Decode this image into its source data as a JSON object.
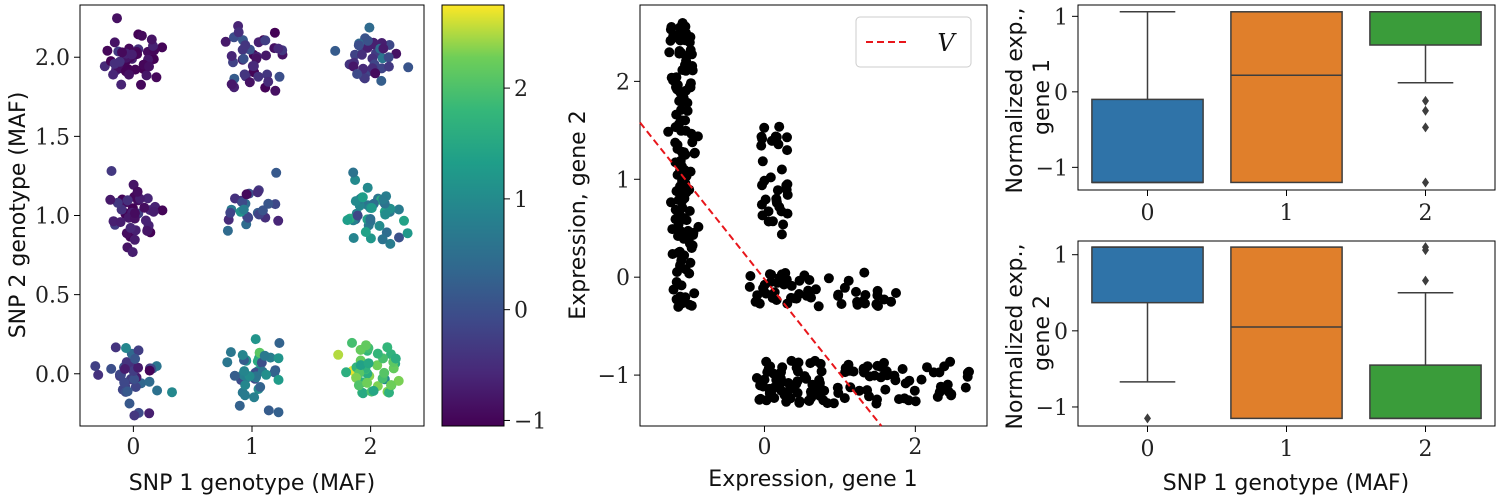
{
  "chart_data": [
    {
      "panel": "genotype-scatter",
      "type": "scatter",
      "xlabel": "SNP 1 genotype (MAF)",
      "ylabel": "SNP 2 genotype (MAF)",
      "xlim": [
        -0.45,
        2.45
      ],
      "ylim": [
        -0.33,
        2.33
      ],
      "xticks": [
        0,
        1,
        2
      ],
      "xtick_labels": [
        "0",
        "1",
        "2"
      ],
      "yticks": [
        0.0,
        0.5,
        1.0,
        1.5,
        2.0
      ],
      "ytick_labels": [
        "0.0",
        "0.5",
        "1.0",
        "1.5",
        "2.0"
      ],
      "colormap": "viridis",
      "color_range": [
        -1.05,
        2.75
      ],
      "colorbar_ticks": [
        -1,
        0,
        1,
        2
      ],
      "colorbar_tick_labels": [
        "−1",
        "0",
        "1",
        "2"
      ],
      "clusters": [
        {
          "x": 0,
          "y": 2,
          "mean_color": -0.9,
          "spread": 0.35,
          "n": 45
        },
        {
          "x": 1,
          "y": 2,
          "mean_color": -0.6,
          "spread": 0.6,
          "n": 40
        },
        {
          "x": 2,
          "y": 2,
          "mean_color": -0.3,
          "spread": 0.8,
          "n": 40
        },
        {
          "x": 0,
          "y": 1,
          "mean_color": -0.8,
          "spread": 0.4,
          "n": 42
        },
        {
          "x": 1,
          "y": 1,
          "mean_color": 0.0,
          "spread": 0.7,
          "n": 25
        },
        {
          "x": 2,
          "y": 1,
          "mean_color": 0.9,
          "spread": 0.8,
          "n": 42
        },
        {
          "x": 0,
          "y": 0,
          "mean_color": -0.1,
          "spread": 0.8,
          "n": 40
        },
        {
          "x": 1,
          "y": 0,
          "mean_color": 0.8,
          "spread": 0.7,
          "n": 42
        },
        {
          "x": 2,
          "y": 0,
          "mean_color": 2.0,
          "spread": 0.6,
          "n": 45
        }
      ]
    },
    {
      "panel": "expression-scatter",
      "type": "scatter",
      "xlabel": "Expression, gene 1",
      "ylabel": "Expression, gene 2",
      "xlim": [
        -1.65,
        2.95
      ],
      "ylim": [
        -1.52,
        2.78
      ],
      "xticks": [
        0,
        2
      ],
      "xtick_labels": [
        "0",
        "2"
      ],
      "yticks": [
        -1,
        0,
        1,
        2
      ],
      "ytick_labels": [
        "−1",
        "0",
        "1",
        "2"
      ],
      "legend": {
        "position": "top-right",
        "entries": [
          {
            "label": "V",
            "style": "dashed",
            "color": "#e8161b"
          }
        ]
      },
      "line_V": {
        "x": [
          -1.65,
          1.55
        ],
        "y": [
          1.58,
          -1.52
        ]
      },
      "point_groups": [
        {
          "x_center": -1.1,
          "x_spread": 0.28,
          "y_min": -0.35,
          "y_max": 2.62,
          "n": 150
        },
        {
          "x_center": 0.05,
          "x_spread": 0.3,
          "y_min": 0.4,
          "y_max": 1.9,
          "n": 35
        },
        {
          "x_center": 0.6,
          "x_spread": 1.1,
          "y_min": -0.3,
          "y_max": 0.05,
          "n": 55
        },
        {
          "x_center": 1.0,
          "x_spread": 1.6,
          "y_min": -1.3,
          "y_max": -0.85,
          "n": 120
        }
      ]
    },
    {
      "panel": "boxplot-gene1",
      "type": "box",
      "ylabel": "Normalized exp., gene 1",
      "categories": [
        "0",
        "1",
        "2"
      ],
      "ylim": [
        -1.3,
        1.15
      ],
      "yticks": [
        -1,
        0,
        1
      ],
      "ytick_labels": [
        "−1",
        "0",
        "1"
      ],
      "xtick_labels": [
        "0",
        "1",
        "2"
      ],
      "colors": [
        "#2f73a8",
        "#e07f2b",
        "#3a9c3a"
      ],
      "boxes": [
        {
          "whisker_low": -1.2,
          "q1": -1.2,
          "median": -1.2,
          "q3": -0.1,
          "whisker_high": 1.06,
          "outliers": []
        },
        {
          "whisker_low": -1.2,
          "q1": -1.2,
          "median": 0.22,
          "q3": 1.06,
          "whisker_high": 1.06,
          "outliers": []
        },
        {
          "whisker_low": 0.12,
          "q1": 0.62,
          "median": 1.06,
          "q3": 1.06,
          "whisker_high": 1.06,
          "outliers": [
            -0.12,
            -0.25,
            -0.47,
            -1.2
          ]
        }
      ]
    },
    {
      "panel": "boxplot-gene2",
      "type": "box",
      "ylabel": "Normalized exp., gene 2",
      "xlabel": "SNP 1 genotype (MAF)",
      "categories": [
        "0",
        "1",
        "2"
      ],
      "ylim": [
        -1.25,
        1.18
      ],
      "yticks": [
        -1,
        0,
        1
      ],
      "ytick_labels": [
        "−1",
        "0",
        "1"
      ],
      "xtick_labels": [
        "0",
        "1",
        "2"
      ],
      "colors": [
        "#2f73a8",
        "#e07f2b",
        "#3a9c3a"
      ],
      "boxes": [
        {
          "whisker_low": -0.67,
          "q1": 0.37,
          "median": 1.1,
          "q3": 1.1,
          "whisker_high": 1.1,
          "outliers": [
            -1.15
          ]
        },
        {
          "whisker_low": -1.15,
          "q1": -1.15,
          "median": 0.05,
          "q3": 1.1,
          "whisker_high": 1.1,
          "outliers": []
        },
        {
          "whisker_low": -1.15,
          "q1": -1.15,
          "median": -1.15,
          "q3": -0.45,
          "whisker_high": 0.5,
          "outliers": [
            0.66,
            1.06,
            1.1
          ]
        }
      ]
    }
  ]
}
